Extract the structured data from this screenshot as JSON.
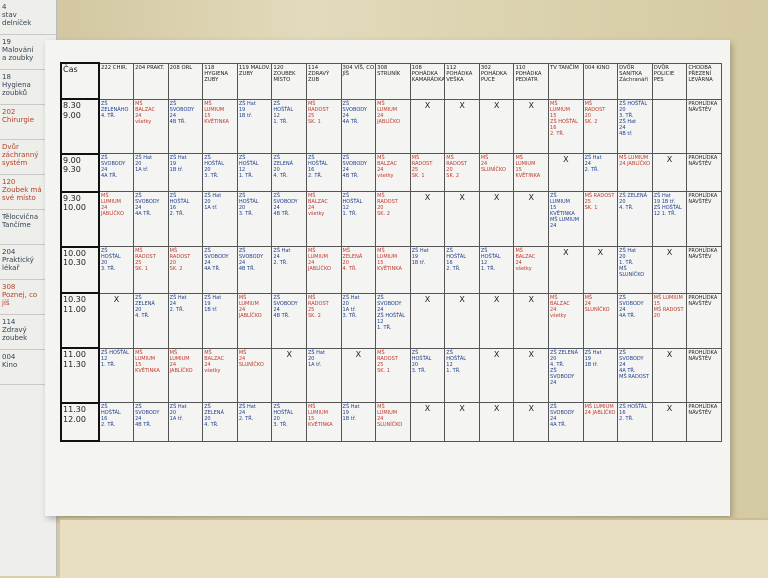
{
  "side_list": [
    "4\nstav\ndelníček",
    "19\nMalování\na zoubky",
    "18\nHygiena\nzoubků",
    "202\nChirurgie",
    "Dvůr\nzáchranný\nsystém",
    "120\nZoubek má\nsvé místo",
    "Tělocvična\nTančíme",
    "204\nPraktický\nlékař",
    "308\nPoznej, co\njíš",
    "114\nZdravý\nzoubek",
    "004\nKino"
  ],
  "table": {
    "header": [
      "Čas",
      "222 CHIR.",
      "204 PRAKT.",
      "208 ORL",
      "118 HYGIENA ZUBY",
      "119 MALOV. ZUBY",
      "120 ZOUBEK MÍSTO",
      "114 ZDRAVÝ ZUB",
      "304 VÍŠ, CO JÍŠ",
      "308 STRUNÍK",
      "108 POHÁDKA KAMARÁDKA",
      "112 POHÁDKA VEŠKA",
      "302 POHÁDKA PUCE",
      "110 POHÁDKA PEDIATR",
      "TV TANČÍM",
      "004 KINO",
      "DVŮR SANITKA Záchranáři",
      "DVŮR POLICIE PES",
      "CHODBA PŘEZENÍ LEVÁRNA"
    ],
    "rows": [
      [
        "8.30\n9.00",
        "ZŠ\nZELENÁHO\n4. TŘ.",
        "MŠ\nBALZAC\n24\nvšetky",
        "ZŠ\nSVOBODY\n24\n4B TŘ.",
        "MŠ\nLUMIUM\n15\nKVĚTINKA",
        "ZŠ Hat\n19\n1B tř.",
        "ZŠ\nHOŠŤÁL\n12\n1. TŘ.",
        "MŠ\nRADOST\n25\nSK. 1",
        "ZŠ\nSVOBODY\n24\n4A TŘ.",
        "MŠ\nLUMIUM\n24\nJABLÍČKO",
        "X",
        "X",
        "X",
        "X",
        "MŠ\nLUMIUM\n15\nZŠ HOŠŤÁL\n16\n2. TŘ.",
        "MŠ\nRADOST\n20\nSK. 2",
        "ZŠ HOŠŤÁL\n20\n3. TŘ.\nZŠ Hat\n24\n4B tř.",
        "",
        "PROHLÍDKA\nNÁVŠTĚV"
      ],
      [
        "9.00\n9.30",
        "ZŠ\nSVOBODY\n24\n4A TŘ.",
        "ZŠ Hat\n20\n1A tř.",
        "ZŠ Hat\n19\n1B tř.",
        "ZŠ\nHOŠŤÁL\n20\n3. TŘ.",
        "ZŠ\nHOŠŤÁL\n12\n1. TŘ.",
        "ZŠ\nZELENÁ\n20\n4. TŘ.",
        "ZŠ\nHOŠŤÁL\n16\n2. TŘ.",
        "ZŠ\nSVOBODY\n24\n4B TŘ.",
        "MŠ\nBALZAC\n24\nvšetky",
        "MŠ\nRADOST\n25\nSK. 1",
        "MŠ\nRADOST\n20\nSK. 2",
        "MŠ\n24\nSLUNÍČKO",
        "MŠ\nLUMIUM\n15\nKVĚTINKA",
        "X",
        "ZŠ Hat\n24\n2. TŘ.",
        "MŠ LUMIUM\n24 JABLÍČKO",
        "X",
        "PROHLÍDKA\nNÁVŠTĚV"
      ],
      [
        "9.30\n10.00",
        "MŠ\nLUMIUM\n24\nJABLÍČKO",
        "ZŠ\nSVOBODY\n24\n4A TŘ.",
        "ZŠ\nHOŠŤÁL\n16\n2. TŘ.",
        "ZŠ Hat\n20\n1A tř.",
        "ZŠ\nHOŠŤÁL\n20\n3. TŘ.",
        "ZŠ\nSVOBODY\n24\n4B TŘ.",
        "MŠ\nBALZAC\n24\nvšetky",
        "ZŠ\nHOŠŤÁL\n12\n1. TŘ.",
        "MŠ\nRADOST\n20\nSK. 2",
        "X",
        "X",
        "X",
        "X",
        "ZŠ\nLUMIUM\n15\nKVĚTINKA\nMŠ LUMIUM\n24",
        "MŠ RADOST\n25\nSK. 1",
        "ZŠ ZELENÁ\n20\n4. TŘ.",
        "ZŠ Hat\n19 1B tř.\nZŠ HOŠŤÁL\n12 1. TŘ.",
        "PROHLÍDKA\nNÁVŠTĚV"
      ],
      [
        "10.00\n10.30",
        "ZŠ\nHOŠŤÁL\n20\n3. TŘ.",
        "MŠ\nRADOST\n25\nSK. 1",
        "MŠ\nRADOST\n20\nSK. 2",
        "ZŠ\nSVOBODY\n24\n4A TŘ.",
        "ZŠ\nSVOBODY\n24\n4B TŘ.",
        "ZŠ Hat\n24\n2. TŘ.",
        "MŠ\nLUMIUM\n24\nJABLÍČKO",
        "MŠ\nZELENÁ\n20\n4. TŘ.",
        "MŠ\nLUMIUM\n15\nKVĚTINKA",
        "ZŠ Hat\n19\n1B tř.",
        "ZŠ\nHOŠŤÁL\n16\n2. TŘ.",
        "ZŠ\nHOŠŤÁL\n12\n1. TŘ.",
        "MŠ\nBALZAC\n24\nvšetky",
        "X",
        "X",
        "ZŠ Hat\n20\n1. TŘ.\nMŠ SLUNÍČKO",
        "X",
        "PROHLÍDKA\nNÁVŠTĚV"
      ],
      [
        "10.30\n11.00",
        "X",
        "ZŠ\nZELENÁ\n20\n4. TŘ.",
        "ZŠ Hat\n24\n2. TŘ.",
        "ZŠ Hat\n19\n1B tř.",
        "MŠ\nLUMIUM\n24\nJABLÍČKO",
        "ZŠ\nSVOBODY\n24\n4B TŘ.",
        "MŠ\nRADOST\n25\nSK. 2",
        "ZŠ Hat\n20\n1A tř.\n3. TŘ.",
        "ZŠ\nSVOBODY\n24\nZŠ HOŠŤÁL\n12\n1. TŘ.",
        "X",
        "X",
        "X",
        "X",
        "MŠ\nBALZAC\n24\nvšetky",
        "MŠ\n24\nSLUNÍČKO",
        "ZŠ SVOBODY\n24\n4A TŘ.",
        "MŠ LUMIUM\n15\nMŠ RADOST\n20",
        "PROHLÍDKA\nNÁVŠTĚV"
      ],
      [
        "11.00\n11.30",
        "ZŠ HOŠŤÁL\n12\n1. TŘ.",
        "MŠ\nLUMIUM\n15\nKVĚTINKA",
        "MŠ\nLUMIUM\n24\nJABLÍČKO",
        "MŠ\nBALZAC\n24\nvšetky",
        "MŠ\n24\nSLUNÍČKO",
        "X",
        "ZŠ Hat\n20\n1A tř.",
        "X",
        "MŠ\nRADOST\n25\nSK. 1",
        "ZŠ\nHOŠŤÁL\n20\n3. TŘ.",
        "ZŠ\nHOŠŤÁL\n12\n1. TŘ.",
        "X",
        "X",
        "ZŠ ZELENÁ\n20\n4. TŘ.\nZŠ SVOBODY\n24",
        "ZŠ Hat\n19\n1B tř.",
        "ZŠ SVOBODY\n24\n4A TŘ.\nMŠ RADOST",
        "X",
        "PROHLÍDKA\nNÁVŠTĚV"
      ],
      [
        "11.30\n12.00",
        "ZŠ\nHOŠŤÁL\n16\n2. TŘ.",
        "ZŠ\nSVOBODY\n24\n4B TŘ.",
        "ZŠ Hat\n20\n1A tř.",
        "ZŠ\nZELENÁ\n20\n4. TŘ.",
        "ZŠ Hat\n24\n2. TŘ.",
        "ZŠ\nHOŠŤÁL\n20\n3. TŘ.",
        "MŠ\nLUMIUM\n15\nKVĚTINKA",
        "ZŠ Hat\n19\n1B tř.",
        "MŠ\nLUMIUM\n24\nSLUNÍČKO",
        "X",
        "X",
        "X",
        "X",
        "ZŠ SVOBODY\n24\n4A TŘ.",
        "MŠ LUMIUM\n24 JABLÍČKO",
        "ZŠ HOŠŤÁL\n16\n2. TŘ.",
        "X",
        "PROHLÍDKA\nNÁVŠTĚV"
      ]
    ]
  }
}
